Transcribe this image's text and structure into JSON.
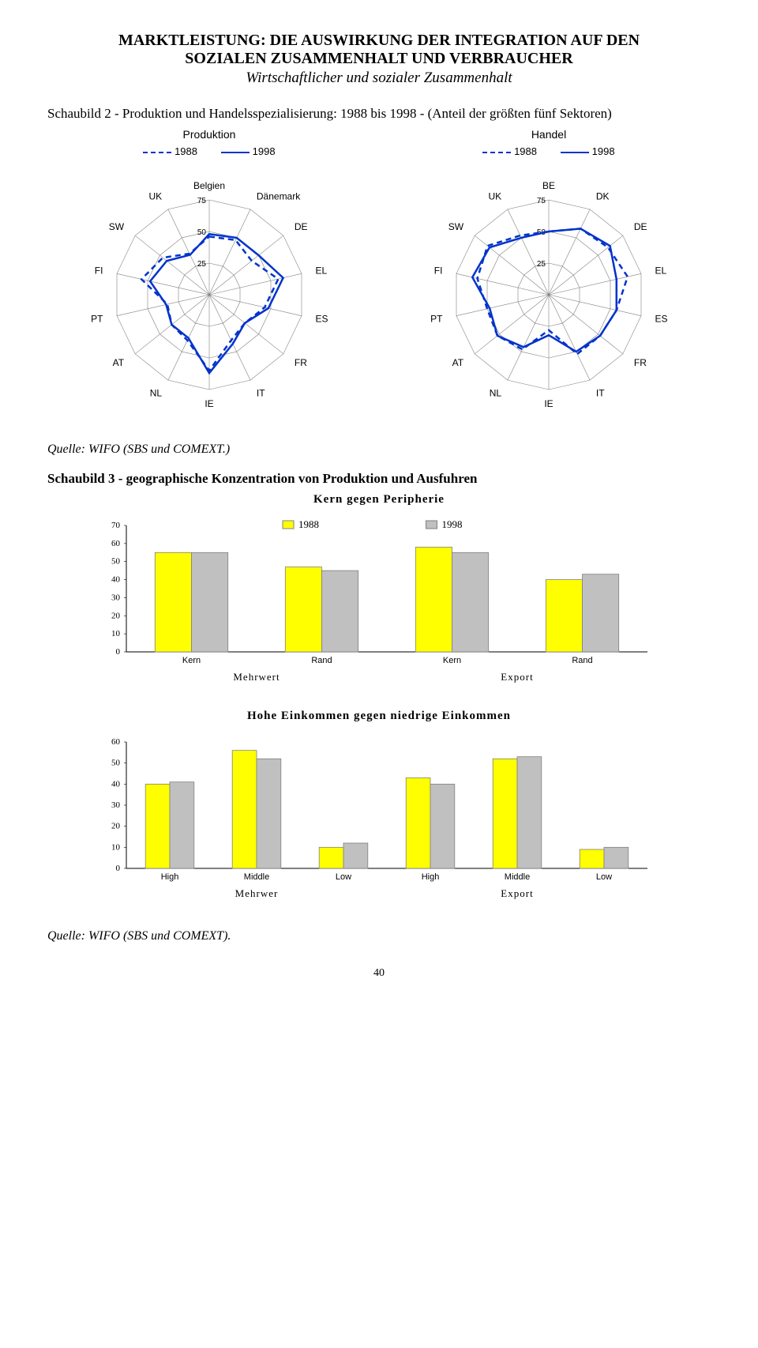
{
  "header": {
    "title_line1": "MARKTLEISTUNG: DIE AUSWIRKUNG DER INTEGRATION AUF DEN",
    "title_line2": "SOZIALEN ZUSAMMENHALT UND VERBRAUCHER",
    "subtitle": "Wirtschaftlicher und sozialer Zusammenhalt"
  },
  "schaubild2": {
    "caption": "Schaubild 2 - Produktion und Handelsspezialisierung: 1988 bis 1998 - (Anteil der größten fünf Sektoren)",
    "radarLeft": {
      "title": "Produktion",
      "legend": [
        "1988",
        "1998"
      ],
      "axes": [
        "Belgien",
        "Dänemark",
        "DE",
        "EL",
        "ES",
        "FR",
        "IT",
        "IE",
        "NL",
        "AT",
        "PT",
        "FI",
        "SW",
        "UK"
      ],
      "rings": [
        25,
        50,
        75
      ],
      "values1988": [
        46,
        48,
        43,
        56,
        45,
        36,
        40,
        60,
        40,
        38,
        34,
        55,
        47,
        36
      ],
      "values1998": [
        48,
        50,
        50,
        60,
        48,
        36,
        43,
        62,
        38,
        38,
        35,
        48,
        43,
        35
      ],
      "color1988": "#0033cc",
      "color1998": "#0033cc",
      "style1988": "dashed",
      "style1998": "solid"
    },
    "radarRight": {
      "title": "Handel",
      "legend": [
        "1988",
        "1998"
      ],
      "axes": [
        "BE",
        "DK",
        "DE",
        "EL",
        "ES",
        "FR",
        "IT",
        "IE",
        "NL",
        "AT",
        "PT",
        "FI",
        "SW",
        "UK"
      ],
      "rings": [
        25,
        50,
        75
      ],
      "values1988": [
        50,
        58,
        60,
        64,
        55,
        52,
        52,
        28,
        48,
        52,
        50,
        58,
        62,
        52
      ],
      "values1998": [
        50,
        58,
        62,
        55,
        55,
        52,
        50,
        32,
        46,
        52,
        48,
        62,
        60,
        50
      ],
      "color1988": "#0033cc",
      "color1998": "#0033cc",
      "style1988": "dashed",
      "style1998": "solid"
    }
  },
  "source1": "Quelle: WIFO (SBS und COMEXT.)",
  "schaubild3": {
    "caption": "Schaubild 3 - geographische Konzentration von Produktion und Ausfuhren",
    "chart1": {
      "title": "Kern gegen Peripherie",
      "ylim": [
        0,
        70
      ],
      "ytick_step": 10,
      "legend": [
        "1988",
        "1998"
      ],
      "legend_colors": [
        "#ffff00",
        "#c0c0c0"
      ],
      "groups": [
        "Mehrwert",
        "Export"
      ],
      "categories": [
        "Kern",
        "Rand",
        "Kern",
        "Rand"
      ],
      "values1988": [
        55,
        47,
        58,
        40
      ],
      "values1998": [
        55,
        45,
        55,
        43
      ],
      "bar_colors": [
        "#ffff00",
        "#c0c0c0"
      ],
      "border_color": "#808080"
    },
    "chart2": {
      "title": "Hohe Einkommen gegen niedrige Einkommen",
      "ylim": [
        0,
        60
      ],
      "ytick_step": 10,
      "groups": [
        "Mehrwer",
        "Export"
      ],
      "categories": [
        "High",
        "Middle",
        "Low",
        "High",
        "Middle",
        "Low"
      ],
      "values1988": [
        40,
        56,
        10,
        43,
        52,
        9
      ],
      "values1998": [
        41,
        52,
        12,
        40,
        53,
        10
      ],
      "bar_colors": [
        "#ffff00",
        "#c0c0c0"
      ],
      "border_color": "#808080"
    }
  },
  "source2": "Quelle: WIFO (SBS und COMEXT).",
  "page_number": "40",
  "colors": {
    "grid": "#808080",
    "axis": "#000000",
    "background": "#ffffff"
  }
}
